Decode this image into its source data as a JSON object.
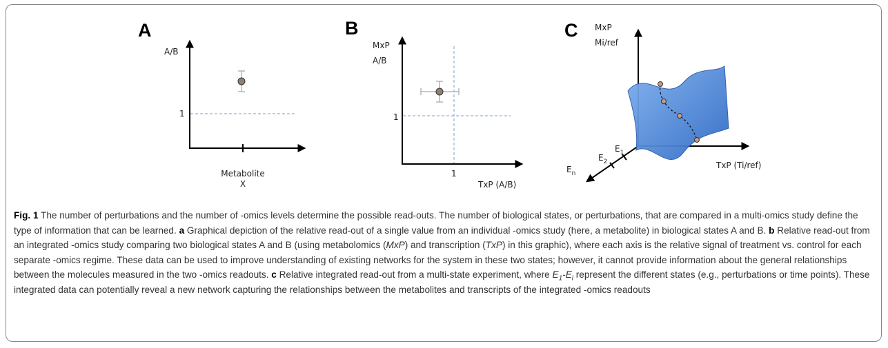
{
  "panels": {
    "a": {
      "label": "A",
      "y_axis": "A/B",
      "ref_tick": "1",
      "x_category": [
        "Metabolite",
        "X"
      ]
    },
    "b": {
      "label": "B",
      "y_axis": [
        "MxP",
        "A/B"
      ],
      "y_ref_tick": "1",
      "x_ref_tick": "1",
      "x_axis": "TxP (A/B)"
    },
    "c": {
      "label": "C",
      "y_axis": [
        "MxP",
        "Mi/ref"
      ],
      "x_axis": "TxP (Ti/ref)",
      "states": [
        {
          "main": "E",
          "sub": "1"
        },
        {
          "main": "E",
          "sub": "2"
        },
        {
          "main": "E",
          "sub": "n"
        }
      ]
    }
  },
  "caption": {
    "runs": [
      "Fig. 1",
      " The number of perturbations and the number of -omics levels determine the possible read-outs. The number of biological states, or perturbations, that are compared in a multi-omics study define the type of information that can be learned. ",
      "a",
      " Graphical depiction of the relative read-out of a single value from an individual -omics study (here, a metabolite) in biological states A and B. ",
      "b",
      " Relative read-out from an integrated -omics study comparing two biological states A and B (using metabolomics (",
      "MxP",
      ") and transcription (",
      "TxP",
      ") in this graphic), where each axis is the relative signal of treatment vs. control for each separate -omics regime. These data can be used to improve understanding of existing networks for the system in these two states; however, it cannot provide information about the general relationships between the molecules measured in the two -omics readouts. ",
      "c",
      " Relative integrated read-out from a multi-state experiment, where ",
      "E",
      "1",
      "-E",
      "i",
      " represent the different states (e.g., perturbations or time points). These integrated data can potentially reveal a new network capturing the relationships between the metabolites and transcripts of the integrated -omics readouts"
    ]
  }
}
